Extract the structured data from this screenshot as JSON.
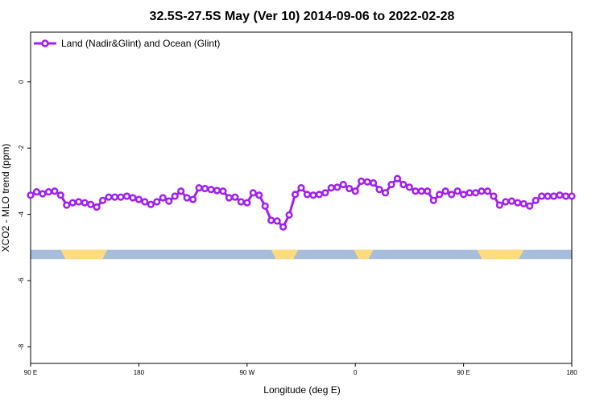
{
  "chart_data": {
    "type": "line",
    "title": "32.5S-27.5S May (Ver 10)   2014-09-06 to 2022-02-28",
    "xlabel": "Longitude (deg E)",
    "ylabel": "XCO2 - MLO trend (ppm)",
    "xlim": [
      90,
      450
    ],
    "ylim": [
      -8.5,
      1.5
    ],
    "x_ticks": [
      {
        "value": 90,
        "label": "90 E"
      },
      {
        "value": 162,
        "label": "180"
      },
      {
        "value": 234,
        "label": "90 W"
      },
      {
        "value": 306,
        "label": "0"
      },
      {
        "value": 378,
        "label": "90 E"
      },
      {
        "value": 450,
        "label": "180"
      }
    ],
    "y_ticks": [
      {
        "value": 0,
        "label": "0"
      },
      {
        "value": -2,
        "label": "-2"
      },
      {
        "value": -4,
        "label": "-4"
      },
      {
        "value": -6,
        "label": "-6"
      },
      {
        "value": -8,
        "label": "-8"
      }
    ],
    "legend_position": "top-left",
    "grid": false,
    "surface_band": {
      "y_range": [
        -5.35,
        -5.07
      ],
      "ocean_color": "#a8bcdc",
      "land_color": "#fcdc7c",
      "land_segments": [
        [
          110,
          141
        ],
        [
          250,
          268
        ],
        [
          305,
          318
        ],
        [
          387,
          418
        ]
      ]
    },
    "series": [
      {
        "name": "Land (Nadir&Glint) and Ocean (Glint)",
        "color": "#a020f0",
        "x": [
          90,
          94,
          98,
          102,
          106,
          110,
          114,
          118,
          122,
          126,
          130,
          134,
          138,
          142,
          146,
          150,
          154,
          158,
          162,
          166,
          170,
          174,
          178,
          182,
          186,
          190,
          194,
          198,
          202,
          206,
          210,
          214,
          218,
          222,
          226,
          230,
          234,
          238,
          242,
          246,
          250,
          254,
          258,
          262,
          266,
          270,
          274,
          278,
          282,
          286,
          290,
          294,
          298,
          302,
          306,
          310,
          314,
          318,
          322,
          326,
          330,
          334,
          338,
          342,
          346,
          350,
          354,
          358,
          362,
          366,
          370,
          374,
          378,
          382,
          386,
          390,
          394,
          398,
          402,
          406,
          410,
          414,
          418,
          422,
          426,
          430,
          434,
          438,
          442,
          446,
          450
        ],
        "y": [
          -3.42,
          -3.32,
          -3.38,
          -3.32,
          -3.3,
          -3.42,
          -3.72,
          -3.65,
          -3.62,
          -3.65,
          -3.7,
          -3.78,
          -3.58,
          -3.48,
          -3.48,
          -3.48,
          -3.45,
          -3.5,
          -3.55,
          -3.62,
          -3.7,
          -3.62,
          -3.5,
          -3.6,
          -3.45,
          -3.3,
          -3.5,
          -3.55,
          -3.2,
          -3.22,
          -3.25,
          -3.28,
          -3.3,
          -3.5,
          -3.48,
          -3.62,
          -3.65,
          -3.35,
          -3.42,
          -3.75,
          -4.18,
          -4.2,
          -4.38,
          -4.02,
          -3.4,
          -3.2,
          -3.4,
          -3.42,
          -3.4,
          -3.35,
          -3.2,
          -3.18,
          -3.1,
          -3.22,
          -3.3,
          -3.0,
          -3.02,
          -3.05,
          -3.25,
          -3.35,
          -3.1,
          -2.92,
          -3.1,
          -3.18,
          -3.3,
          -3.3,
          -3.3,
          -3.58,
          -3.4,
          -3.3,
          -3.4,
          -3.3,
          -3.4,
          -3.35,
          -3.35,
          -3.3,
          -3.3,
          -3.45,
          -3.72,
          -3.62,
          -3.6,
          -3.65,
          -3.68,
          -3.75,
          -3.58,
          -3.45,
          -3.45,
          -3.45,
          -3.42,
          -3.45,
          -3.45
        ]
      }
    ]
  }
}
